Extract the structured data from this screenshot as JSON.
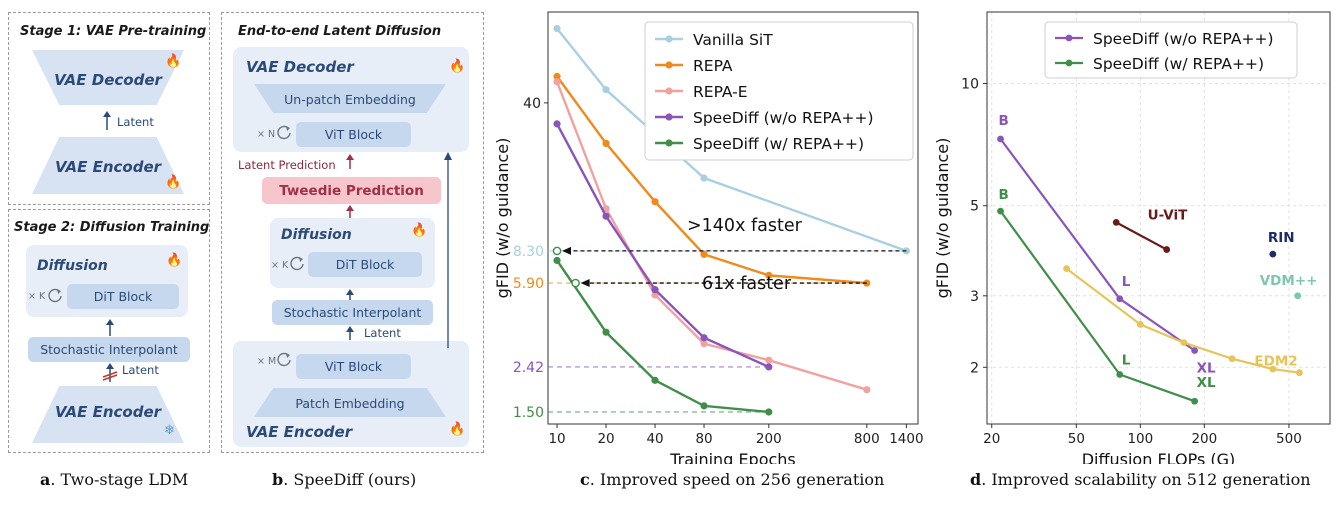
{
  "panel_a": {
    "stage1_title": "Stage 1: VAE Pre-training",
    "vae_decoder": "VAE Decoder",
    "latent_label": "Latent",
    "vae_encoder": "VAE Encoder",
    "stage2_title": "Stage 2: Diffusion Training",
    "diffusion_label": "Diffusion",
    "repeat_label": "× K",
    "dit_block": "DiT Block",
    "stochastic_interpolant": "Stochastic Interpolant",
    "latent_label2": "Latent",
    "vae_encoder2": "VAE Encoder",
    "caption_letter": "a",
    "caption_text": ". Two-stage LDM"
  },
  "panel_b": {
    "title": "End-to-end Latent Diffusion",
    "vae_decoder": "VAE Decoder",
    "unpatch": "Un-patch Embedding",
    "repeat_n": "× N",
    "vit_block_top": "ViT Block",
    "latent_prediction": "Latent Prediction",
    "tweedie_prediction": "Tweedie Prediction",
    "diffusion_label": "Diffusion",
    "repeat_k": "× K",
    "dit_block": "DiT Block",
    "stochastic_interpolant": "Stochastic Interpolant",
    "latent_label": "Latent",
    "repeat_m": "× M",
    "vit_block_bottom": "ViT Block",
    "patch_embedding": "Patch Embedding",
    "vae_encoder": "VAE Encoder",
    "caption_letter": "b",
    "caption_text": ". SpeeDiff (ours)"
  },
  "panel_c": {
    "caption_letter": "c",
    "caption_text": ". Improved speed on 256 generation",
    "annotations": {
      "faster_140": ">140x faster",
      "faster_61": "61x faster"
    },
    "colors": {
      "vanilla": "#a9cfe0",
      "repa": "#f08a1c",
      "repae": "#f2a0a0",
      "speediff_wo": "#8a55b8",
      "speediff_w": "#3f8f4a"
    }
  },
  "panel_d": {
    "caption_letter": "d",
    "caption_text": ". Improved scalability on 512 generation",
    "colors": {
      "speediff_wo": "#8a55b8",
      "speediff_w": "#3f8f4a",
      "uvit": "#6b1a1a",
      "rin": "#1e2d66",
      "vdm": "#7cc7b0",
      "edm2": "#e5c458"
    }
  },
  "chart_data": [
    {
      "type": "line",
      "xlabel": "Training Epochs",
      "ylabel": "gFID (w/o guidance)",
      "x_scale": "log",
      "y_scale": "log",
      "xticks": [
        10,
        20,
        40,
        80,
        200,
        800,
        1400
      ],
      "yticks": [
        40
      ],
      "ref_lines": [
        {
          "label": "8.30",
          "value": 8.3,
          "color": "#a9cfe0"
        },
        {
          "label": "5.90",
          "value": 5.9,
          "color": "#f08a1c"
        },
        {
          "label": "2.42",
          "value": 2.42,
          "color": "#8a55b8"
        },
        {
          "label": "1.50",
          "value": 1.5,
          "color": "#3f8f4a"
        }
      ],
      "legend": "top-right",
      "grid": false,
      "series": [
        {
          "name": "Vanilla SiT",
          "x": [
            10,
            20,
            80,
            1400
          ],
          "y": [
            88,
            46,
            18,
            8.3
          ]
        },
        {
          "name": "REPA",
          "x": [
            10,
            20,
            40,
            80,
            200,
            800
          ],
          "y": [
            53,
            26,
            14,
            8,
            6.4,
            5.9
          ]
        },
        {
          "name": "REPA-E",
          "x": [
            10,
            20,
            40,
            80,
            200,
            800
          ],
          "y": [
            50,
            13,
            5.2,
            3.1,
            2.6,
            1.9
          ]
        },
        {
          "name": "SpeeDiff (w/o REPA++)",
          "x": [
            10,
            20,
            40,
            80,
            200
          ],
          "y": [
            32,
            12,
            5.5,
            3.3,
            2.42
          ]
        },
        {
          "name": "SpeeDiff (w/ REPA++)",
          "x": [
            10,
            20,
            40,
            80,
            200
          ],
          "y": [
            7.5,
            3.5,
            2.1,
            1.6,
            1.5
          ]
        }
      ]
    },
    {
      "type": "line",
      "xlabel": "Diffusion FLOPs (G)",
      "ylabel": "gFID (w/o guidance)",
      "x_scale": "log",
      "y_scale": "log",
      "xticks": [
        20,
        50,
        100,
        200,
        500
      ],
      "yticks": [
        2,
        3,
        5,
        10
      ],
      "legend": "top-left",
      "grid": true,
      "series": [
        {
          "name": "SpeeDiff (w/o REPA++)",
          "x": [
            22,
            80,
            180
          ],
          "y": [
            7.3,
            2.95,
            2.2
          ],
          "point_labels": [
            "B",
            "L",
            "XL"
          ]
        },
        {
          "name": "SpeeDiff (w/ REPA++)",
          "x": [
            22,
            80,
            180
          ],
          "y": [
            4.85,
            1.92,
            1.65
          ],
          "point_labels": [
            "B",
            "L",
            "XL"
          ]
        },
        {
          "name": "",
          "label": "U-ViT",
          "x": [
            77,
            133
          ],
          "y": [
            4.55,
            3.9
          ]
        },
        {
          "name": "",
          "label": "RIN",
          "x": [
            420
          ],
          "y": [
            3.8
          ]
        },
        {
          "name": "",
          "label": "VDM++",
          "x": [
            550
          ],
          "y": [
            3.0
          ]
        },
        {
          "name": "",
          "label": "EDM2",
          "x": [
            45,
            100,
            160,
            270,
            420,
            560
          ],
          "y": [
            3.5,
            2.55,
            2.3,
            2.1,
            1.98,
            1.94
          ]
        }
      ]
    }
  ]
}
